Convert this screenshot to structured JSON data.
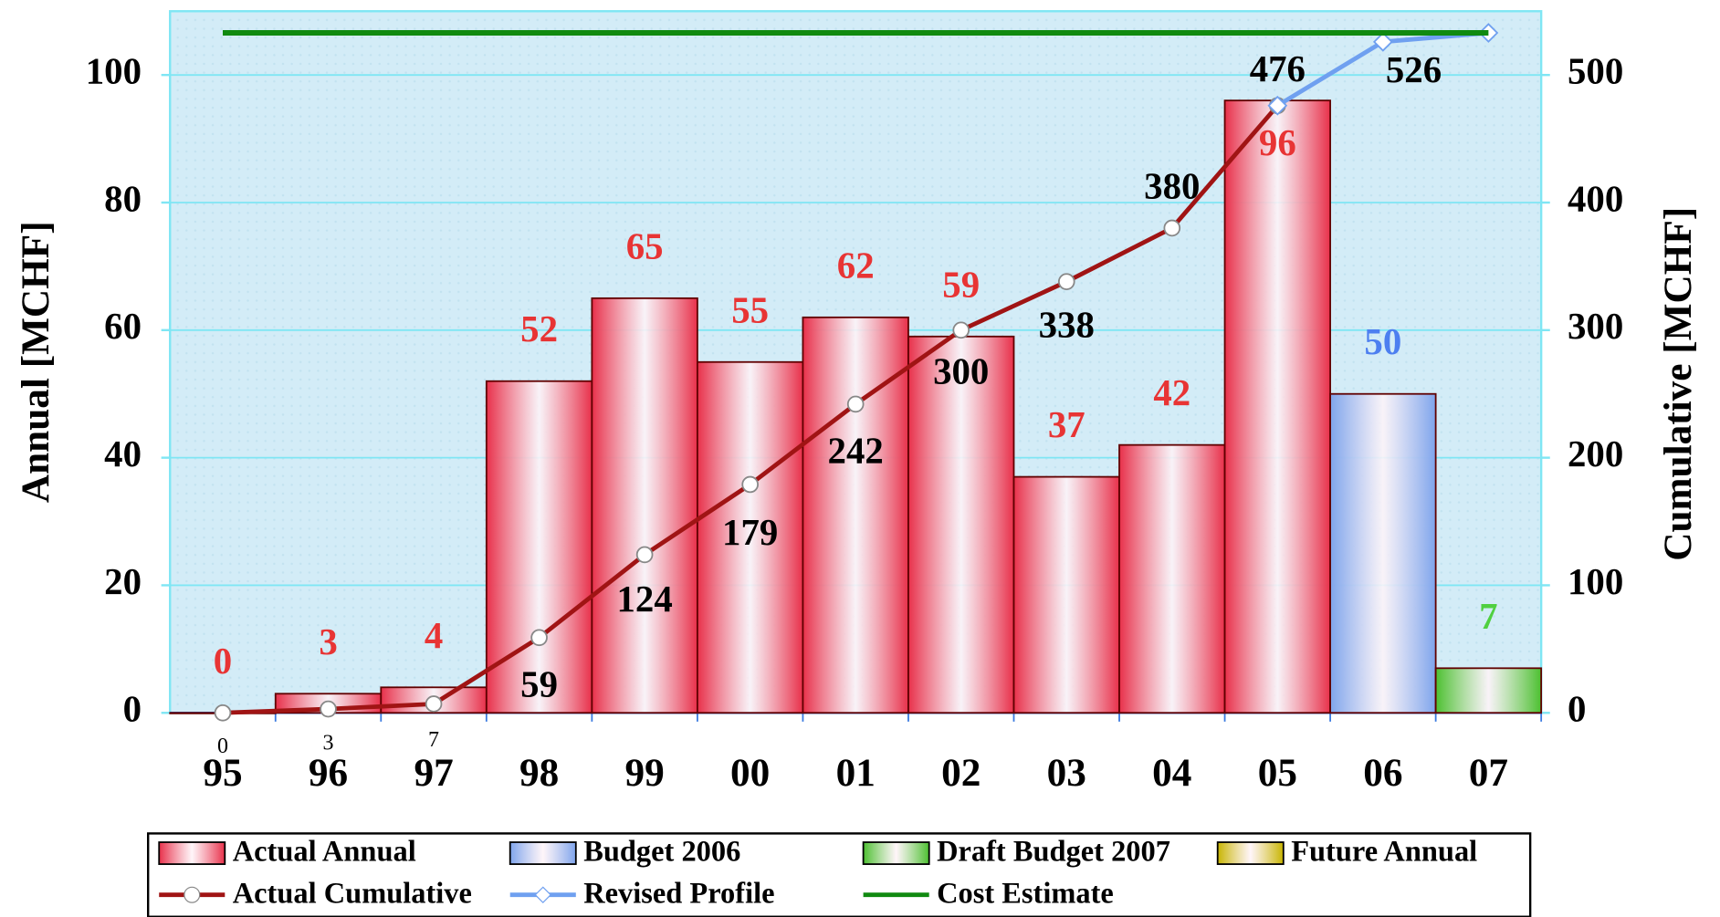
{
  "chart_data": {
    "type": "bar",
    "categories": [
      "95",
      "96",
      "97",
      "98",
      "99",
      "00",
      "01",
      "02",
      "03",
      "04",
      "05",
      "06",
      "07"
    ],
    "ylabel": "Annual [MCHF]",
    "y2label": "Cumulative [MCHF]",
    "ylim": [
      0,
      110
    ],
    "yticks": [
      0,
      20,
      40,
      60,
      80,
      100
    ],
    "y2lim": [
      0,
      550
    ],
    "y2ticks": [
      0,
      100,
      200,
      300,
      400,
      500
    ],
    "grid": true,
    "legend": "bottom",
    "series": [
      {
        "name": "Actual Annual",
        "type": "bar",
        "color": "#e8304a",
        "label_color": "#e83434",
        "values": [
          0,
          3,
          4,
          52,
          65,
          55,
          62,
          59,
          37,
          42,
          96,
          null,
          null
        ]
      },
      {
        "name": "Budget 2006",
        "type": "bar",
        "color": "#7ea4ec",
        "label_color": "#4d7ff0",
        "values": [
          null,
          null,
          null,
          null,
          null,
          null,
          null,
          null,
          null,
          null,
          null,
          50,
          null
        ]
      },
      {
        "name": "Draft Budget 2007",
        "type": "bar",
        "color": "#4cc030",
        "label_color": "#50d040",
        "values": [
          null,
          null,
          null,
          null,
          null,
          null,
          null,
          null,
          null,
          null,
          null,
          null,
          7
        ]
      },
      {
        "name": "Future Annual",
        "type": "bar",
        "color": "#c8b400",
        "values": [
          null,
          null,
          null,
          null,
          null,
          null,
          null,
          null,
          null,
          null,
          null,
          null,
          null
        ]
      },
      {
        "name": "Actual Cumulative",
        "type": "line",
        "axis": "y2",
        "color": "#a01414",
        "marker": "circle",
        "values": [
          0,
          3,
          7,
          59,
          124,
          179,
          242,
          300,
          338,
          380,
          476,
          null,
          null
        ]
      },
      {
        "name": "Revised Profile",
        "type": "line",
        "axis": "y2",
        "color": "#6fa0f0",
        "marker": "diamond",
        "values": [
          null,
          null,
          null,
          null,
          null,
          null,
          null,
          null,
          null,
          null,
          476,
          526,
          533
        ]
      },
      {
        "name": "Cost Estimate",
        "type": "line",
        "axis": "y2",
        "color": "#108a10",
        "values": [
          533,
          533,
          533,
          533,
          533,
          533,
          533,
          533,
          533,
          533,
          533,
          533,
          533
        ]
      }
    ]
  }
}
